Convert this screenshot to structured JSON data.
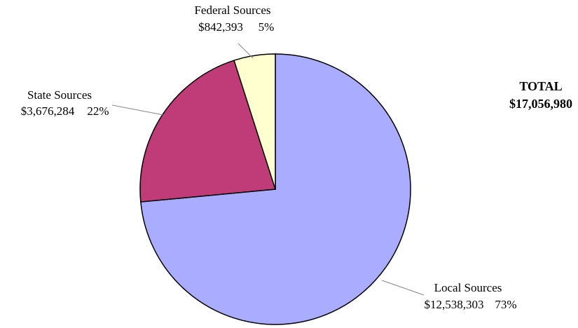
{
  "chart_data": {
    "type": "pie",
    "categories": [
      "Local Sources",
      "State Sources",
      "Federal Sources"
    ],
    "values": [
      12538303,
      3676284,
      842393
    ],
    "value_labels": [
      "$12,538,303",
      "$3,676,284",
      "$842,393"
    ],
    "percent_labels": [
      "73%",
      "22%",
      "5%"
    ],
    "colors": [
      "#a9acff",
      "#c03c78",
      "#ffffd0"
    ],
    "total_title": "TOTAL",
    "total_text": "$17,056,980"
  }
}
